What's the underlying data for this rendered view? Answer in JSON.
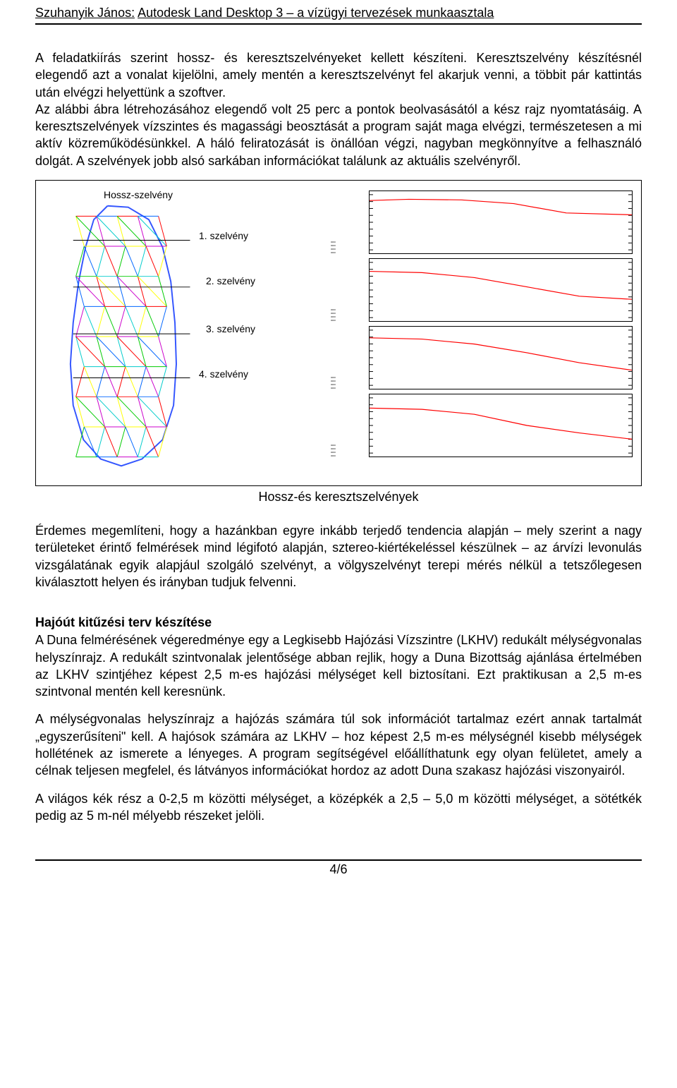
{
  "header": {
    "title_prefix": "Szuhanyik János:",
    "title_main": "Autodesk Land Desktop 3 – a vízügyi tervezések munkaasztala"
  },
  "paragraph1": "A feladatkiírás szerint hossz- és keresztszelvényeket kellett készíteni. Keresztszelvény készítésnél elegendő azt a vonalat kijelölni, amely mentén a keresztszelvényt fel akarjuk venni, a többit pár kattintás után elvégzi helyettünk a szoftver.",
  "paragraph2": "Az alábbi ábra létrehozásához elegendő volt 25 perc a pontok beolvasásától a kész rajz nyomtatásáig. A keresztszelvények vízszintes és magassági beosztását a program saját maga elvégzi, természetesen a mi aktív közreműködésünkkel. A háló feliratozását is önállóan végzi, nagyban megkönnyítve a felhasználó dolgát. A szelvények jobb alsó sarkában információkat találunk az aktuális szelvényről.",
  "figure": {
    "title_label": "Hossz-szelvény",
    "section_labels": [
      "1. szelvény",
      "2. szelvény",
      "3. szelvény",
      "4. szelvény"
    ],
    "mesh": {
      "outline_color": "#3355ff",
      "wire_colors": [
        "#ff0000",
        "#ffff00",
        "#00cc00",
        "#0066ff",
        "#cc00cc",
        "#00cccc"
      ],
      "line_width": 1
    },
    "charts": [
      {
        "grid_color": "#000000",
        "line_color": "#ff0000",
        "ylim": [
          0,
          100
        ],
        "points": [
          [
            0,
            85
          ],
          [
            15,
            87
          ],
          [
            35,
            86
          ],
          [
            55,
            80
          ],
          [
            75,
            65
          ],
          [
            100,
            62
          ]
        ]
      },
      {
        "grid_color": "#000000",
        "line_color": "#ff0000",
        "ylim": [
          0,
          100
        ],
        "points": [
          [
            0,
            80
          ],
          [
            20,
            78
          ],
          [
            40,
            70
          ],
          [
            60,
            55
          ],
          [
            80,
            40
          ],
          [
            100,
            35
          ]
        ]
      },
      {
        "grid_color": "#000000",
        "line_color": "#ff0000",
        "ylim": [
          0,
          100
        ],
        "points": [
          [
            0,
            82
          ],
          [
            20,
            80
          ],
          [
            40,
            72
          ],
          [
            60,
            58
          ],
          [
            80,
            42
          ],
          [
            100,
            30
          ]
        ]
      },
      {
        "grid_color": "#000000",
        "line_color": "#ff0000",
        "ylim": [
          0,
          100
        ],
        "points": [
          [
            0,
            78
          ],
          [
            20,
            76
          ],
          [
            40,
            68
          ],
          [
            60,
            50
          ],
          [
            80,
            38
          ],
          [
            100,
            28
          ]
        ]
      }
    ],
    "caption": "Hossz-és keresztszelvények"
  },
  "paragraph3": "Érdemes megemlíteni, hogy a hazánkban egyre inkább terjedő tendencia alapján – mely szerint a nagy területeket érintő felmérések mind légifotó alapján, sztereo-kiértékeléssel készülnek – az árvízi levonulás vizsgálatának egyik alapjául szolgáló szelvényt, a völgyszelvényt terepi mérés nélkül a tetszőlegesen kiválasztott helyen és irányban tudjuk felvenni.",
  "section2": {
    "heading": "Hajóút kitűzési terv készítése",
    "p1": "A Duna felmérésének végeredménye egy a Legkisebb Hajózási Vízszintre (LKHV) redukált mélységvonalas helyszínrajz. A redukált szintvonalak jelentősége abban rejlik, hogy a Duna Bizottság ajánlása értelmében az LKHV szintjéhez képest 2,5 m-es hajózási mélységet kell biztosítani. Ezt praktikusan a 2,5 m-es szintvonal mentén kell keresnünk.",
    "p2": "A mélységvonalas helyszínrajz a hajózás számára túl sok információt tartalmaz ezért annak tartalmát „egyszerűsíteni\" kell. A hajósok számára az LKHV – hoz képest 2,5 m-es mélységnél kisebb mélységek hollétének az ismerete a lényeges. A program segítségével előállíthatunk egy olyan felületet, amely a célnak teljesen megfelel, és látványos információkat hordoz az adott Duna szakasz hajózási viszonyairól.",
    "p3": "A világos kék rész a 0-2,5 m közötti mélységet, a középkék a 2,5 – 5,0 m közötti mélységet, a sötétkék pedig az 5 m-nél mélyebb részeket jelöli."
  },
  "footer": "4/6"
}
